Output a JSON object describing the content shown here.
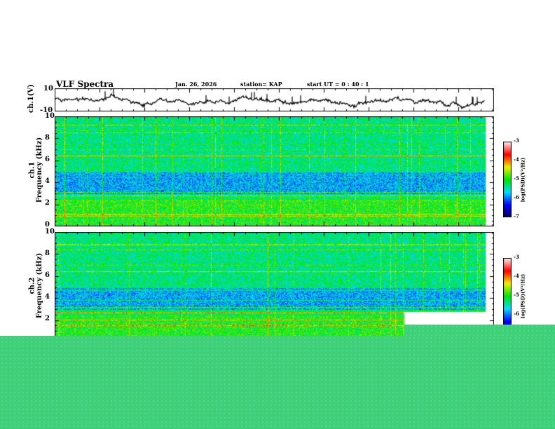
{
  "header": {
    "title": "VLF Spectra",
    "date": "Jan. 26, 2026",
    "station": "station= KAP",
    "start": "start  UT =  0 : 40 : 1"
  },
  "chart_data": [
    {
      "type": "line",
      "title": "VLF Spectra",
      "ylabel": "ch.1(V)",
      "ylim": [
        -10,
        10
      ],
      "yticks": [
        "10",
        "-10"
      ]
    },
    {
      "type": "heatmap",
      "ylabel": "ch.1\nFrequency (kHz)",
      "ylabel_ch": "ch.1",
      "ylabel_freq": "Frequency (kHz)",
      "ylim": [
        0,
        10
      ],
      "yticks": [
        "10",
        "8",
        "6",
        "4",
        "2",
        "0"
      ],
      "colorbar": {
        "label": "log(PSD)(V²/Hz)",
        "range": [
          -7,
          -3
        ],
        "ticks": [
          "-3",
          "-4",
          "-5",
          "-6",
          "-7"
        ]
      }
    },
    {
      "type": "heatmap",
      "ylabel_ch": "ch.2",
      "ylabel_freq": "Frequency (kHz)",
      "ylim": [
        0,
        10
      ],
      "yticks": [
        "10",
        "8",
        "6",
        "4",
        "2"
      ],
      "colorbar": {
        "label": "log(PSD)(V²/Hz)",
        "range": [
          -7,
          -3
        ],
        "ticks": [
          "-3",
          "-4",
          "-5",
          "-6"
        ]
      }
    }
  ],
  "colors": {
    "overlay": "#3ecf7a"
  }
}
